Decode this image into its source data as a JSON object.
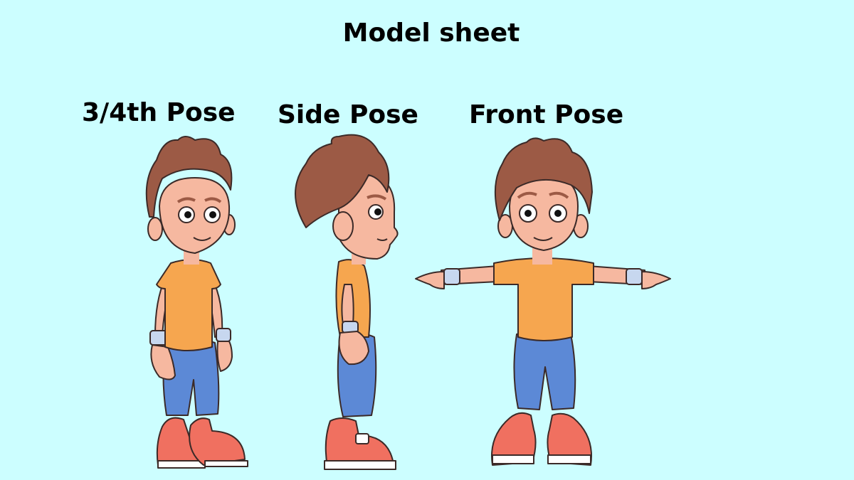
{
  "title": "Model sheet",
  "poses": [
    {
      "label": "3/4th Pose"
    },
    {
      "label": "Side Pose"
    },
    {
      "label": "Front Pose"
    }
  ],
  "colors": {
    "background": "#ccfeff",
    "hair": "#9c5a45",
    "skin": "#f6b8a0",
    "shirt": "#f6a64f",
    "pants": "#5c89d6",
    "shoes": "#f07060",
    "sole": "#ffffff",
    "wristband": "#c7d7ef",
    "outline": "#3b2a28"
  }
}
